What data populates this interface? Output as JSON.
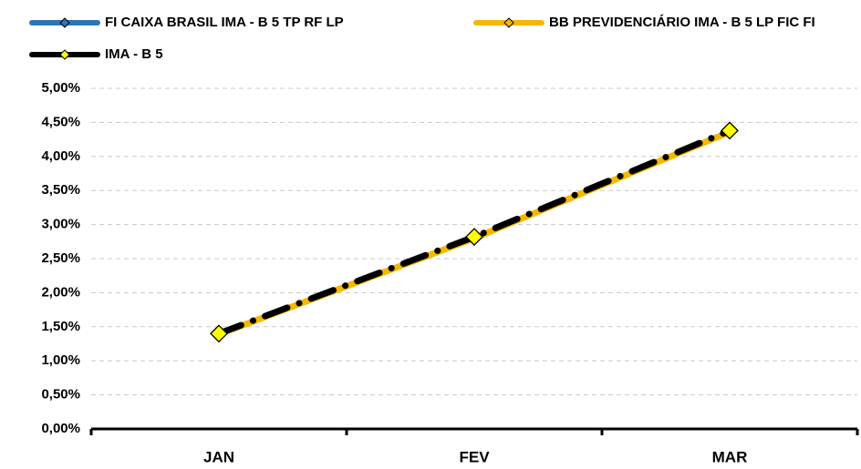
{
  "chart_data": {
    "type": "line",
    "categories": [
      "JAN",
      "FEV",
      "MAR"
    ],
    "series": [
      {
        "name": "FI CAIXA BRASIL IMA - B 5 TP RF LP",
        "color": "#2e75b6",
        "marker_color": "#2e75b6",
        "values": [
          1.38,
          2.79,
          4.34
        ]
      },
      {
        "name": "BB PREVIDENCIÁRIO IMA - B 5 LP FIC FI",
        "color": "#f5b800",
        "marker_color": "#f5b800",
        "values": [
          1.39,
          2.8,
          4.36
        ]
      },
      {
        "name": "IMA - B 5",
        "color": "#000000",
        "marker_color": "#ffff00",
        "values": [
          1.4,
          2.82,
          4.38
        ]
      }
    ],
    "ylim": [
      0,
      5
    ],
    "yticks": [
      {
        "value": 0,
        "label": "0,00%"
      },
      {
        "value": 0.5,
        "label": "0,50%"
      },
      {
        "value": 1,
        "label": "1,00%"
      },
      {
        "value": 1.5,
        "label": "1,50%"
      },
      {
        "value": 2,
        "label": "2,00%"
      },
      {
        "value": 2.5,
        "label": "2,50%"
      },
      {
        "value": 3,
        "label": "3,00%"
      },
      {
        "value": 3.5,
        "label": "3,50%"
      },
      {
        "value": 4,
        "label": "4,00%"
      },
      {
        "value": 4.5,
        "label": "4,50%"
      },
      {
        "value": 5,
        "label": "5,00%"
      }
    ],
    "grid": true
  }
}
